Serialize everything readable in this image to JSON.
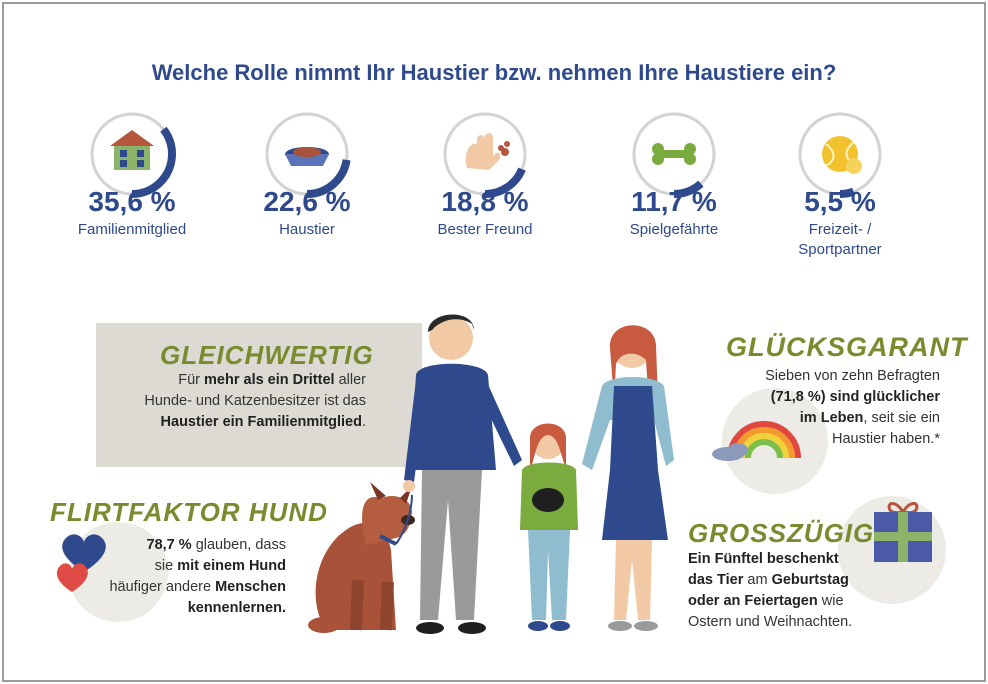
{
  "title": "Welche Rolle nimmt Ihr Haustier bzw. nehmen Ihre Haustiere ein?",
  "chart_data": {
    "type": "bar",
    "categories": [
      "Familienmitglied",
      "Haustier",
      "Bester Freund",
      "Spielgefährte",
      "Freizeit- / Sportpartner"
    ],
    "values": [
      35.6,
      22.6,
      18.8,
      11.7,
      5.5
    ],
    "value_labels": [
      "35,6 %",
      "22,6 %",
      "18,8 %",
      "11,7 %",
      "5,5 %"
    ],
    "label_lines": [
      [
        "Familienmitglied"
      ],
      [
        "Haustier"
      ],
      [
        "Bester Freund"
      ],
      [
        "Spielgefährte"
      ],
      [
        "Freizeit- /",
        "Sportpartner"
      ]
    ],
    "icons": [
      "house-icon",
      "pet-bowl-icon",
      "hand-paw-icon",
      "dog-bone-icon",
      "tennis-ball-icon"
    ],
    "ylim": [
      0,
      100
    ],
    "title": "Welche Rolle nimmt Ihr Haustier bzw. nehmen Ihre Haustiere ein?"
  },
  "gleichwertig": {
    "title": "GLEICHWERTIG",
    "lines": [
      [
        "Für ",
        "mehr als ein Drittel",
        " aller"
      ],
      [
        "Hunde- und Katzenbesitzer ist das"
      ],
      [
        "Haustier ein Familienmitglied",
        "."
      ]
    ]
  },
  "flirtfaktor": {
    "title": "FLIRTFAKTOR HUND",
    "lines": [
      [
        "78,7 %",
        " glauben, dass"
      ],
      [
        "sie ",
        "mit einem Hund"
      ],
      [
        "häufiger andere ",
        "Menschen"
      ],
      [
        "kennenlernen."
      ]
    ]
  },
  "gluecksgarant": {
    "title": "GLÜCKSGARANT",
    "lines": [
      [
        "Sieben von zehn Befragten"
      ],
      [
        "(71,8 %) sind glücklicher"
      ],
      [
        "im Leben",
        ", seit sie ein"
      ],
      [
        "Haustier haben.*"
      ]
    ]
  },
  "grosszuegig": {
    "title": "GROSSZÜGIG",
    "lines": [
      [
        "Ein Fünftel beschenkt"
      ],
      [
        "das Tier",
        " am ",
        "Geburtstag"
      ],
      [
        "oder an Feiertagen",
        " wie"
      ],
      [
        "Ostern und Weihnachten."
      ]
    ]
  },
  "colors": {
    "accent_blue": "#2e4a8c",
    "ring_grey": "#d3d3d3",
    "headline_green": "#7a8a2e",
    "box_grey": "#dcdad3"
  }
}
